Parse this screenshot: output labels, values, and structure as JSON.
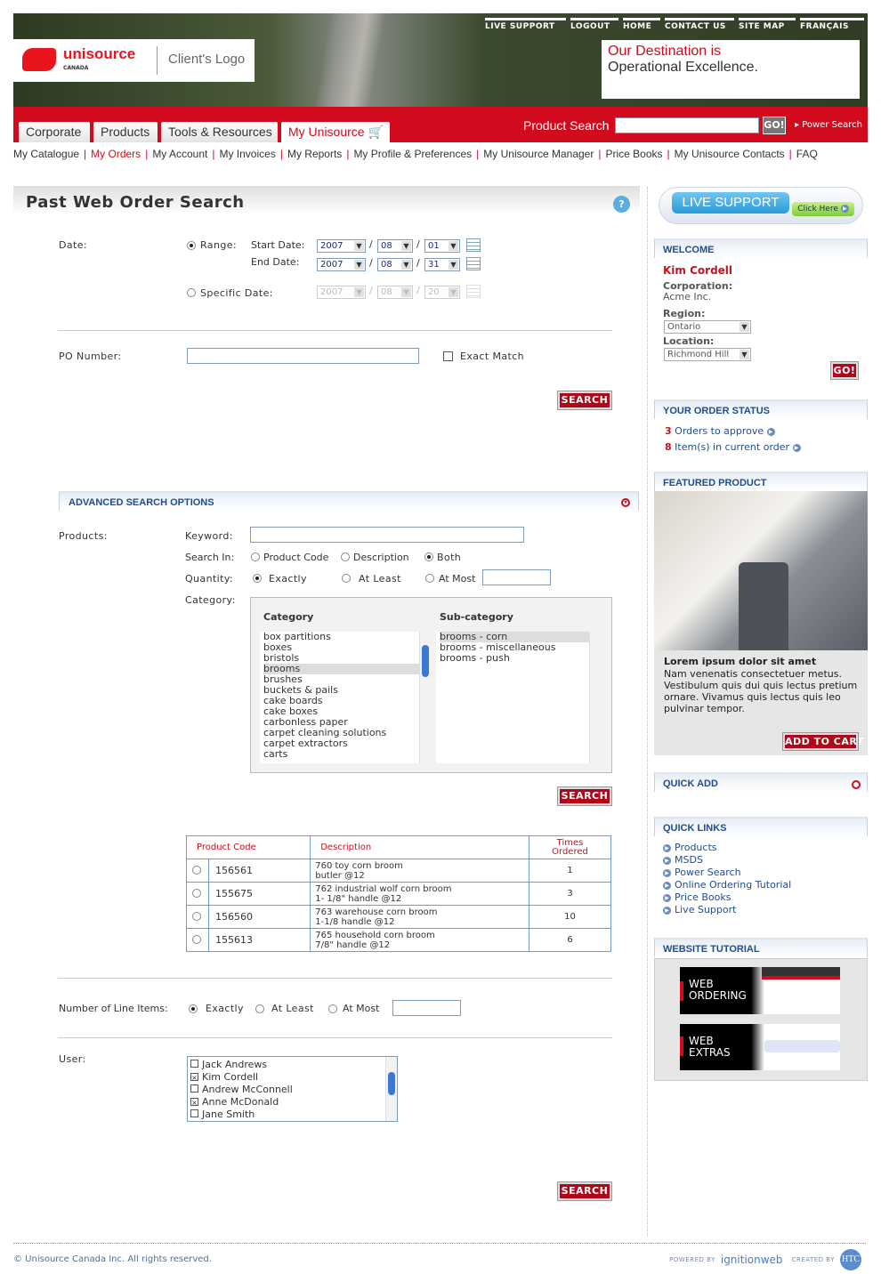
{
  "header": {
    "top_links": [
      "LIVE SUPPORT",
      "LOGOUT",
      "HOME",
      "CONTACT US",
      "SITE MAP",
      "FRANÇAIS"
    ],
    "brand": "unisource",
    "brand_sub": "CANADA",
    "client_logo": "Client's Logo",
    "tagline_red": "Our Destination is",
    "tagline": "Operational Excellence.",
    "tabs": [
      "Corporate",
      "Products",
      "Tools & Resources",
      "My Unisource"
    ],
    "product_search_label": "Product Search",
    "go": "GO!",
    "power_search": "Power Search"
  },
  "subnav": [
    "My Catalogue",
    "My Orders",
    "My Account",
    "My Invoices",
    "My Reports",
    "My Profile & Preferences",
    "My Unisource Manager",
    "Price Books",
    "My Unisource Contacts",
    "FAQ"
  ],
  "page": {
    "title": "Past Web Order Search",
    "date_label": "Date:",
    "range_label": "Range:",
    "start_label": "Start Date:",
    "end_label": "End Date:",
    "specific_label": "Specific Date:",
    "start": {
      "y": "2007",
      "m": "08",
      "d": "01"
    },
    "end": {
      "y": "2007",
      "m": "08",
      "d": "31"
    },
    "specific": {
      "y": "2007",
      "m": "08",
      "d": "20"
    },
    "po_label": "PO Number:",
    "exact_match": "Exact Match",
    "search": "SEARCH"
  },
  "advanced": {
    "title": "ADVANCED SEARCH OPTIONS",
    "products_label": "Products:",
    "keyword_label": "Keyword:",
    "search_in_label": "Search In:",
    "search_in": [
      "Product Code",
      "Description",
      "Both"
    ],
    "quantity_label": "Quantity:",
    "quantity_opts": [
      "Exactly",
      "At Least",
      "At Most"
    ],
    "category_label": "Category:",
    "cat_head": "Category",
    "subcat_head": "Sub-category",
    "categories": [
      "box partitions",
      "boxes",
      "bristols",
      "brooms",
      "brushes",
      "buckets & pails",
      "cake boards",
      "cake boxes",
      "carbonless paper",
      "carpet cleaning solutions",
      "carpet extractors",
      "carts"
    ],
    "subcategories": [
      "brooms - corn",
      "brooms - miscellaneous",
      "brooms - push"
    ]
  },
  "results": {
    "headers": [
      "Product Code",
      "Description",
      "Times Ordered"
    ],
    "rows": [
      {
        "code": "156561",
        "desc1": "760 toy corn broom",
        "desc2": "butler @12",
        "times": "1"
      },
      {
        "code": "155675",
        "desc1": "762 industrial wolf corn broom",
        "desc2": "1- 1/8\" handle @12",
        "times": "3"
      },
      {
        "code": "156560",
        "desc1": "763 warehouse corn broom",
        "desc2": "1-1/8 handle @12",
        "times": "10"
      },
      {
        "code": "155613",
        "desc1": "765 household corn broom",
        "desc2": "7/8\" handle @12",
        "times": "6"
      }
    ]
  },
  "line_items": {
    "label": "Number of Line Items:",
    "opts": [
      "Exactly",
      "At Least",
      "At Most"
    ]
  },
  "users": {
    "label": "User:",
    "list": [
      {
        "name": "Jack Andrews",
        "checked": false
      },
      {
        "name": "Kim Cordell",
        "checked": true
      },
      {
        "name": "Andrew McConnell",
        "checked": false
      },
      {
        "name": "Anne McDonald",
        "checked": true
      },
      {
        "name": "Jane Smith",
        "checked": false
      }
    ]
  },
  "sidebar": {
    "live_support": "LIVE SUPPORT",
    "click_here": "Click Here",
    "welcome": {
      "title": "WELCOME",
      "name": "Kim Cordell",
      "corp_label": "Corporation:",
      "corp": "Acme Inc.",
      "region_label": "Region:",
      "region": "Ontario",
      "location_label": "Location:",
      "location": "Richmond Hill",
      "go": "GO!"
    },
    "order_status": {
      "title": "YOUR ORDER STATUS",
      "items": [
        {
          "count": "3",
          "text": "Orders to approve"
        },
        {
          "count": "8",
          "text": "Item(s) in current order"
        }
      ]
    },
    "featured": {
      "title": "FEATURED PRODUCT",
      "heading": "Lorem ipsum dolor sit amet",
      "body": "Nam venenatis consectetuer metus. Vestibulum quis dui quis lectus pretium ornare. Vivamus quis lectus quis leo pulvinar tempor.",
      "add": "ADD TO CART"
    },
    "quick_add": "QUICK ADD",
    "quick_links": {
      "title": "QUICK LINKS",
      "items": [
        "Products",
        "MSDS",
        "Power Search",
        "Online Ordering Tutorial",
        "Price Books",
        "Live Support"
      ]
    },
    "tutorial": {
      "title": "WEBSITE TUTORIAL",
      "items": [
        [
          "WEB",
          "ORDERING"
        ],
        [
          "WEB",
          "EXTRAS"
        ]
      ]
    }
  },
  "footer": {
    "copyright": "© Unisource Canada Inc. All rights reserved.",
    "powered_by": "POWERED BY",
    "ignition": "ignitionweb",
    "created_by": "CREATED BY",
    "htc": "HTC"
  },
  "colors": {
    "brand_red": "#d20a1e",
    "link_blue": "#1f4d8f"
  }
}
